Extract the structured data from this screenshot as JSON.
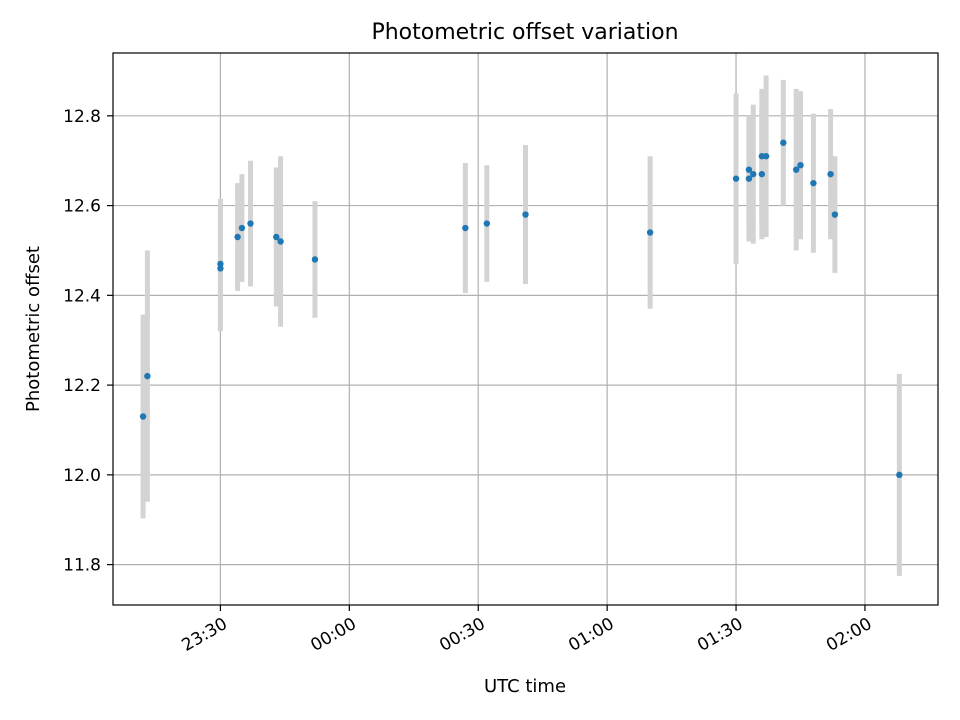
{
  "chart_data": {
    "type": "scatter",
    "title": "Photometric offset variation",
    "xlabel": "UTC time",
    "ylabel": "Photometric offset",
    "x_axis": {
      "kind": "time",
      "start": "23:05",
      "end": "02:17",
      "ticks": [
        "23:30",
        "00:00",
        "00:30",
        "01:00",
        "01:30",
        "02:00"
      ]
    },
    "ylim": [
      11.71,
      12.94
    ],
    "yticks": [
      "11.8",
      "12.0",
      "12.2",
      "12.4",
      "12.6",
      "12.8"
    ],
    "grid": true,
    "colors": {
      "point": "#1f77b4",
      "errorbar": "#d3d3d3",
      "grid": "#b0b0b0"
    },
    "points": [
      {
        "x": "23:12",
        "y": 12.13,
        "err": 0.227
      },
      {
        "x": "23:13",
        "y": 12.22,
        "err": 0.28
      },
      {
        "x": "23:30",
        "y": 12.47,
        "err": 0.145
      },
      {
        "x": "23:30",
        "y": 12.46,
        "err": 0.14
      },
      {
        "x": "23:34",
        "y": 12.53,
        "err": 0.12
      },
      {
        "x": "23:35",
        "y": 12.55,
        "err": 0.12
      },
      {
        "x": "23:37",
        "y": 12.56,
        "err": 0.14
      },
      {
        "x": "23:43",
        "y": 12.53,
        "err": 0.155
      },
      {
        "x": "23:44",
        "y": 12.52,
        "err": 0.19
      },
      {
        "x": "23:52",
        "y": 12.48,
        "err": 0.13
      },
      {
        "x": "00:27",
        "y": 12.55,
        "err": 0.145
      },
      {
        "x": "00:32",
        "y": 12.56,
        "err": 0.13
      },
      {
        "x": "00:41",
        "y": 12.58,
        "err": 0.155
      },
      {
        "x": "01:10",
        "y": 12.54,
        "err": 0.17
      },
      {
        "x": "01:30",
        "y": 12.66,
        "err": 0.19
      },
      {
        "x": "01:33",
        "y": 12.68,
        "err": 0.12
      },
      {
        "x": "01:33",
        "y": 12.66,
        "err": 0.14
      },
      {
        "x": "01:34",
        "y": 12.67,
        "err": 0.155
      },
      {
        "x": "01:36",
        "y": 12.67,
        "err": 0.145
      },
      {
        "x": "01:36",
        "y": 12.71,
        "err": 0.15
      },
      {
        "x": "01:37",
        "y": 12.71,
        "err": 0.18
      },
      {
        "x": "01:41",
        "y": 12.74,
        "err": 0.14
      },
      {
        "x": "01:44",
        "y": 12.68,
        "err": 0.18
      },
      {
        "x": "01:45",
        "y": 12.69,
        "err": 0.165
      },
      {
        "x": "01:48",
        "y": 12.65,
        "err": 0.155
      },
      {
        "x": "01:52",
        "y": 12.67,
        "err": 0.145
      },
      {
        "x": "01:53",
        "y": 12.58,
        "err": 0.13
      },
      {
        "x": "02:08",
        "y": 12.0,
        "err": 0.225
      }
    ]
  }
}
